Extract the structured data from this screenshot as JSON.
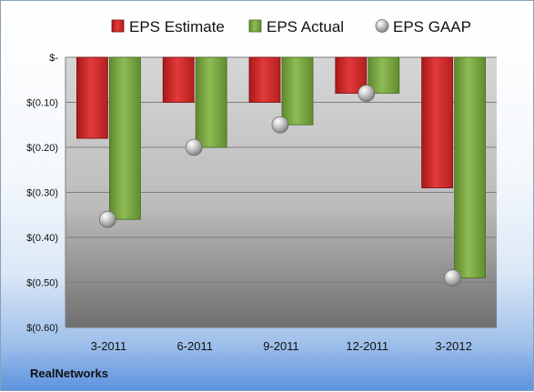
{
  "company": "RealNetworks",
  "chart_data": {
    "type": "bar",
    "categories": [
      "3-2011",
      "6-2011",
      "9-2011",
      "12-2011",
      "3-2012"
    ],
    "series": [
      {
        "name": "EPS Estimate",
        "values": [
          -0.18,
          -0.1,
          -0.1,
          -0.08,
          -0.29
        ],
        "color": "#d32f2f",
        "shape": "bar"
      },
      {
        "name": "EPS Actual",
        "values": [
          -0.36,
          -0.2,
          -0.15,
          -0.08,
          -0.49
        ],
        "color": "#77a346",
        "shape": "bar"
      },
      {
        "name": "EPS GAAP",
        "values": [
          -0.36,
          -0.2,
          -0.15,
          -0.08,
          -0.49
        ],
        "color": "#b0b0b0",
        "shape": "marker"
      }
    ],
    "ylim": [
      -0.6,
      0
    ],
    "yticks": [
      {
        "value": 0,
        "label": "$-"
      },
      {
        "value": -0.1,
        "label": "$(0.10)"
      },
      {
        "value": -0.2,
        "label": "$(0.20)"
      },
      {
        "value": -0.3,
        "label": "$(0.30)"
      },
      {
        "value": -0.4,
        "label": "$(0.40)"
      },
      {
        "value": -0.5,
        "label": "$(0.50)"
      },
      {
        "value": -0.6,
        "label": "$(0.60)"
      }
    ],
    "grid": true,
    "legend": "top",
    "title": "",
    "xlabel": "",
    "ylabel": ""
  }
}
